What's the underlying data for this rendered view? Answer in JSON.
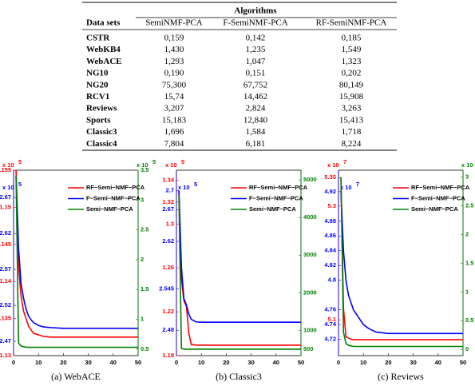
{
  "table": {
    "group_header": "Algorithms",
    "columns": [
      "Data sets",
      "SemiNMF-PCA",
      "F-SemiNMF-PCA",
      "RF-SemiNMF-PCA"
    ],
    "rows": [
      [
        "CSTR",
        "0,159",
        "0,142",
        "0,185"
      ],
      [
        "WebKB4",
        "1,430",
        "1,235",
        "1,549"
      ],
      [
        "WebACE",
        "1,293",
        "1,047",
        "1,323"
      ],
      [
        "NG10",
        "0,190",
        "0,151",
        "0,202"
      ],
      [
        "NG20",
        "75,300",
        "67,752",
        "80,149"
      ],
      [
        "RCV1",
        "15,74",
        "14,462",
        "15,908"
      ],
      [
        "Reviews",
        "3,207",
        "2,824",
        "3,263"
      ],
      [
        "Sports",
        "15,183",
        "12,840",
        "15,413"
      ],
      [
        "Classic3",
        "1,696",
        "1,584",
        "1,718"
      ],
      [
        "Classic4",
        "7,804",
        "6,181",
        "8,224"
      ]
    ]
  },
  "chart_data": [
    {
      "type": "line",
      "caption": "(a) WebACE",
      "x": [
        1,
        2,
        3,
        4,
        5,
        6,
        7,
        8,
        10,
        12,
        15,
        20,
        30,
        40,
        50
      ],
      "xlim": [
        0,
        50
      ],
      "xticks": [
        0,
        10,
        20,
        30,
        40,
        50
      ],
      "ylim": [
        1.13,
        1.155
      ],
      "yticks": [
        1.13,
        1.135,
        1.14,
        1.145,
        1.15,
        1.155
      ],
      "yscale": {
        "base": "x 10",
        "exp": "5"
      },
      "y2lim": [
        2.45,
        2.708
      ],
      "y2ticks": [
        2.47,
        2.52,
        2.57,
        2.62,
        2.67
      ],
      "y2scale": {
        "base": "x 10",
        "exp": "5"
      },
      "y3lim": [
        0.39,
        3.5
      ],
      "y3ticks": [
        0.5,
        1,
        1.5,
        2,
        2.5,
        3,
        3.5
      ],
      "y3scale": {
        "base": "x 10",
        "exp": "5"
      },
      "series": [
        {
          "name": "RF−Semi−NMF−PCA",
          "color": "#ff0000",
          "axis": "y",
          "values": [
            1.155,
            1.142,
            1.138,
            1.136,
            1.135,
            1.134,
            1.1335,
            1.133,
            1.1328,
            1.1326,
            1.1325,
            1.1325,
            1.1325,
            1.1325,
            1.1325
          ]
        },
        {
          "name": "F−Semi−NMF−PCA",
          "color": "#0000ff",
          "axis": "y2",
          "values": [
            2.7,
            2.6,
            2.55,
            2.53,
            2.515,
            2.505,
            2.5,
            2.496,
            2.492,
            2.49,
            2.489,
            2.488,
            2.488,
            2.488,
            2.488
          ]
        },
        {
          "name": "Semi−NMF−PCA",
          "color": "#008000",
          "axis": "y3",
          "values": [
            3.4,
            0.6,
            0.55,
            0.54,
            0.53,
            0.53,
            0.53,
            0.53,
            0.53,
            0.53,
            0.53,
            0.53,
            0.53,
            0.53,
            0.53
          ]
        }
      ]
    },
    {
      "type": "line",
      "caption": "(b) Classic3",
      "x": [
        1,
        2,
        3,
        4,
        5,
        6,
        7,
        8,
        10,
        12,
        15,
        20,
        30,
        40,
        50
      ],
      "xlim": [
        0,
        50
      ],
      "xticks": [
        0,
        10,
        20,
        30,
        40,
        50
      ],
      "ylim": [
        1.18,
        1.349
      ],
      "yticks": [
        1.18,
        1.22,
        1.26,
        1.3,
        1.32,
        1.34
      ],
      "yscale": {
        "base": "x 10",
        "exp": "5"
      },
      "y2lim": [
        2.44,
        2.732
      ],
      "y2ticks": [
        2.48,
        2.545,
        2.62,
        2.67,
        2.7
      ],
      "y2scale": {
        "base": "x 10",
        "exp": "5"
      },
      "y3lim": [
        328,
        5258
      ],
      "y3ticks": [
        500,
        1000,
        2000,
        3000,
        4000,
        5000
      ],
      "series": [
        {
          "name": "RF−Semi−NMF−PCA",
          "color": "#ff0000",
          "axis": "y",
          "values": [
            1.33,
            1.25,
            1.23,
            1.225,
            1.2,
            1.19,
            1.19,
            1.1895,
            1.1895,
            1.1895,
            1.1895,
            1.1895,
            1.1895,
            1.1895,
            1.1895
          ]
        },
        {
          "name": "F−Semi−NMF−PCA",
          "color": "#0000ff",
          "axis": "y2",
          "values": [
            2.7,
            2.58,
            2.53,
            2.52,
            2.505,
            2.497,
            2.495,
            2.493,
            2.4926,
            2.4926,
            2.4926,
            2.4926,
            2.4926,
            2.4926,
            2.4926
          ]
        },
        {
          "name": "Semi−NMF−PCA",
          "color": "#008000",
          "axis": "y3",
          "values": [
            4600,
            520,
            500,
            500,
            500,
            500,
            500,
            500,
            500,
            500,
            500,
            500,
            500,
            500,
            500
          ]
        }
      ]
    },
    {
      "type": "line",
      "caption": "(c) Reviews",
      "x": [
        1,
        2,
        3,
        4,
        5,
        6,
        7,
        8,
        10,
        12,
        15,
        20,
        30,
        40,
        50
      ],
      "xlim": [
        0,
        50
      ],
      "xticks": [
        0,
        10,
        20,
        30,
        40,
        50
      ],
      "ylim": [
        5.037,
        5.363
      ],
      "yticks": [
        5.1,
        5.3,
        5.35
      ],
      "yscale": {
        "base": "x 10",
        "exp": "7"
      },
      "y2lim": [
        4.698,
        4.949
      ],
      "y2ticks": [
        4.72,
        4.74,
        4.76,
        4.8,
        4.82,
        4.84,
        4.86,
        4.88,
        4.92
      ],
      "y2scale": {
        "base": "x 10",
        "exp": "7"
      },
      "y3lim": [
        -0.11,
        3.12
      ],
      "y3ticks": [
        0,
        0.5,
        1,
        1.5,
        2,
        2.5,
        3
      ],
      "y3scale": {
        "base": "x 10"
      },
      "series": [
        {
          "name": "RF−Semi−NMF−PCA",
          "color": "#ff0000",
          "axis": "y",
          "values": [
            5.35,
            5.12,
            5.07,
            5.068,
            5.066,
            5.065,
            5.065,
            5.065,
            5.065,
            5.065,
            5.065,
            5.065,
            5.065,
            5.065,
            5.065
          ]
        },
        {
          "name": "F−Semi−NMF−PCA",
          "color": "#0000ff",
          "axis": "y2",
          "values": [
            4.92,
            4.84,
            4.8,
            4.78,
            4.77,
            4.76,
            4.755,
            4.75,
            4.74,
            4.735,
            4.73,
            4.728,
            4.728,
            4.728,
            4.728
          ]
        },
        {
          "name": "Semi−NMF−PCA",
          "color": "#008000",
          "axis": "y3",
          "values": [
            3.0,
            0.3,
            0.1,
            0.07,
            0.06,
            0.05,
            0.05,
            0.05,
            0.05,
            0.05,
            0.05,
            0.05,
            0.05,
            0.05,
            0.05
          ]
        }
      ]
    }
  ]
}
